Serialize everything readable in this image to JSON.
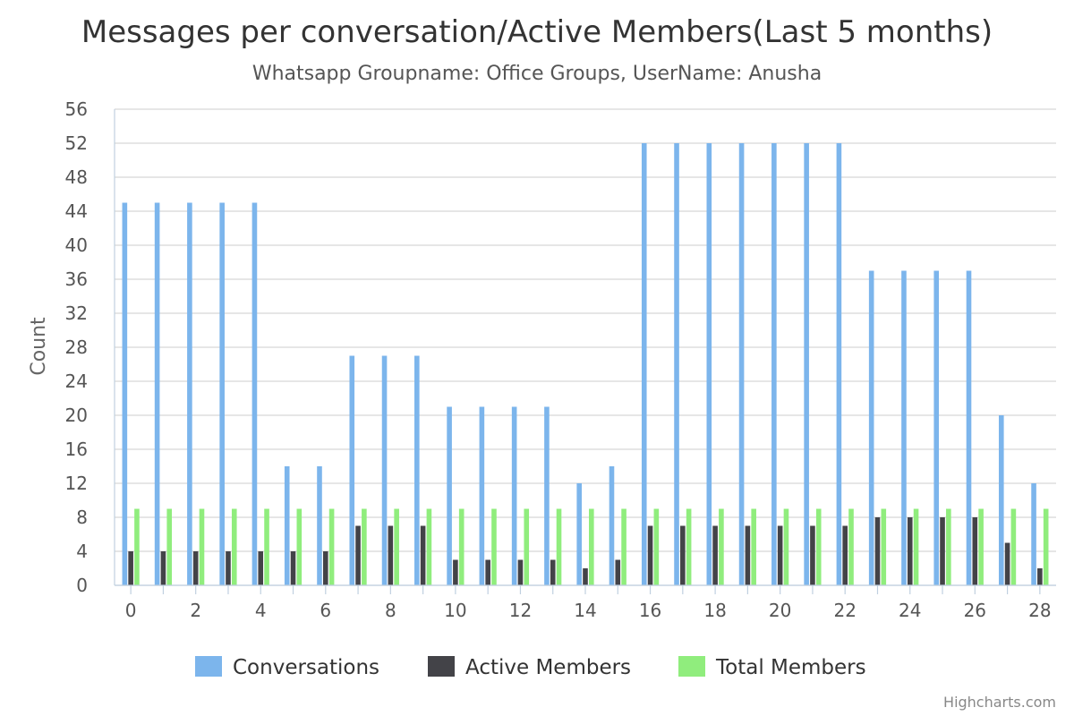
{
  "chart_data": {
    "type": "bar",
    "title": "Messages per conversation/Active Members(Last 5 months)",
    "subtitle": "Whatsapp Groupname: Office Groups, UserName: Anusha",
    "ylabel": "Count",
    "xlabel": "",
    "ylim": [
      0,
      56
    ],
    "ytick_step": 4,
    "xticks": [
      0,
      2,
      4,
      6,
      8,
      10,
      12,
      14,
      16,
      18,
      20,
      22,
      24,
      26,
      28
    ],
    "x": [
      0,
      1,
      2,
      3,
      4,
      5,
      6,
      7,
      8,
      9,
      10,
      11,
      12,
      13,
      14,
      15,
      16,
      17,
      18,
      19,
      20,
      21,
      22,
      23,
      24,
      25,
      26,
      27,
      28
    ],
    "series": [
      {
        "name": "Conversations",
        "color": "#7cb5ec",
        "values": [
          45,
          45,
          45,
          45,
          45,
          14,
          14,
          27,
          27,
          27,
          21,
          21,
          21,
          21,
          12,
          14,
          52,
          52,
          52,
          52,
          52,
          52,
          52,
          37,
          37,
          37,
          37,
          20,
          12
        ]
      },
      {
        "name": "Active Members",
        "color": "#434348",
        "values": [
          4,
          4,
          4,
          4,
          4,
          4,
          4,
          7,
          7,
          7,
          3,
          3,
          3,
          3,
          2,
          3,
          7,
          7,
          7,
          7,
          7,
          7,
          7,
          8,
          8,
          8,
          8,
          5,
          2
        ]
      },
      {
        "name": "Total Members",
        "color": "#90ed7d",
        "values": [
          9,
          9,
          9,
          9,
          9,
          9,
          9,
          9,
          9,
          9,
          9,
          9,
          9,
          9,
          9,
          9,
          9,
          9,
          9,
          9,
          9,
          9,
          9,
          9,
          9,
          9,
          9,
          9,
          9
        ]
      }
    ],
    "grid": true,
    "legend_position": "bottom-center"
  },
  "credit": "Highcharts.com"
}
